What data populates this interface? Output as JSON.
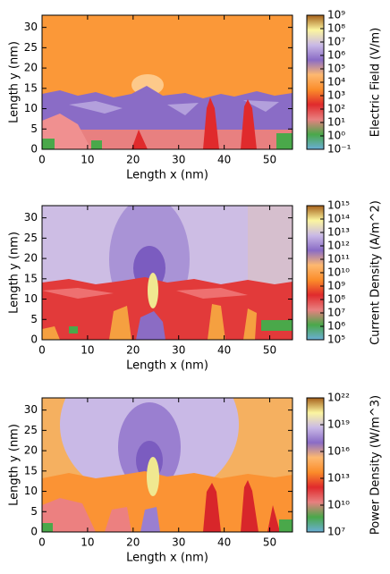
{
  "chart_data": [
    {
      "type": "heatmap",
      "xlabel": "Length x (nm)",
      "ylabel": "Length y (nm)",
      "xlim": [
        0,
        55
      ],
      "xticks": [
        0,
        10,
        20,
        30,
        40,
        50
      ],
      "ylim": [
        0,
        33
      ],
      "yticks": [
        0,
        5,
        10,
        15,
        20,
        25,
        30
      ],
      "colorbar": {
        "label": "Electric Field (V/m)",
        "log": true,
        "lim": [
          0.1,
          1000000000
        ],
        "colors": [
          "#6aaed6",
          "#4aa84a",
          "#e88080",
          "#e02a2c",
          "#fb8c2a",
          "#fdb870",
          "#8a6cc6",
          "#c9b9e6",
          "#fbf5a0",
          "#a6611a"
        ],
        "ticks": [
          {
            "value": 0.1,
            "label": "10⁻¹"
          },
          {
            "value": 1,
            "label": "10⁰"
          },
          {
            "value": 10,
            "label": "10¹"
          },
          {
            "value": 100,
            "label": "10²"
          },
          {
            "value": 1000,
            "label": "10³"
          },
          {
            "value": 10000,
            "label": "10⁴"
          },
          {
            "value": 100000,
            "label": "10⁵"
          },
          {
            "value": 1000000,
            "label": "10⁶"
          },
          {
            "value": 10000000,
            "label": "10⁷"
          },
          {
            "value": 100000000,
            "label": "10⁸"
          },
          {
            "value": 1000000000,
            "label": "10⁹"
          }
        ]
      }
    },
    {
      "type": "heatmap",
      "xlabel": "Length x (nm)",
      "ylabel": "Length y (nm)",
      "xlim": [
        0,
        55
      ],
      "xticks": [
        0,
        10,
        20,
        30,
        40,
        50
      ],
      "ylim": [
        0,
        33
      ],
      "yticks": [
        0,
        5,
        10,
        15,
        20,
        25,
        30
      ],
      "colorbar": {
        "label": "Current Density (A/m^2)",
        "log": true,
        "lim": [
          100000,
          1000000000000000
        ],
        "colors": [
          "#6aaed6",
          "#4aa84a",
          "#e88080",
          "#e02a2c",
          "#fb8c2a",
          "#fdb870",
          "#8a6cc6",
          "#c9b9e6",
          "#fbf5a0",
          "#a6611a"
        ],
        "ticks": [
          {
            "value": 100000,
            "label": "10⁵"
          },
          {
            "value": 1000000,
            "label": "10⁶"
          },
          {
            "value": 10000000,
            "label": "10⁷"
          },
          {
            "value": 100000000,
            "label": "10⁸"
          },
          {
            "value": 1000000000,
            "label": "10⁹"
          },
          {
            "value": 10000000000,
            "label": "10¹⁰"
          },
          {
            "value": 100000000000,
            "label": "10¹¹"
          },
          {
            "value": 1000000000000,
            "label": "10¹²"
          },
          {
            "value": 10000000000000,
            "label": "10¹³"
          },
          {
            "value": 100000000000000,
            "label": "10¹⁴"
          },
          {
            "value": 1000000000000000,
            "label": "10¹⁵"
          }
        ]
      }
    },
    {
      "type": "heatmap",
      "xlabel": "Length x (nm)",
      "ylabel": "Length y (nm)",
      "xlim": [
        0,
        55
      ],
      "xticks": [
        0,
        10,
        20,
        30,
        40,
        50
      ],
      "ylim": [
        0,
        33
      ],
      "yticks": [
        0,
        5,
        10,
        15,
        20,
        25,
        30
      ],
      "colorbar": {
        "label": "Power Density (W/m^3)",
        "log": true,
        "lim": [
          10000000,
          10000000000000000000000
        ],
        "colors": [
          "#6aaed6",
          "#4aa84a",
          "#e88080",
          "#e02a2c",
          "#fb8c2a",
          "#fdb870",
          "#8a6cc6",
          "#c9b9e6",
          "#fbf5a0",
          "#a6611a"
        ],
        "ticks": [
          {
            "value": 10000000,
            "label": "10⁷"
          },
          {
            "value": 10000000000,
            "label": "10¹⁰"
          },
          {
            "value": 10000000000000,
            "label": "10¹³"
          },
          {
            "value": 10000000000000000,
            "label": "10¹⁶"
          },
          {
            "value": 10000000000000000000,
            "label": "10¹⁹"
          },
          {
            "value": 10000000000000000000000,
            "label": "10²²"
          }
        ]
      }
    }
  ]
}
